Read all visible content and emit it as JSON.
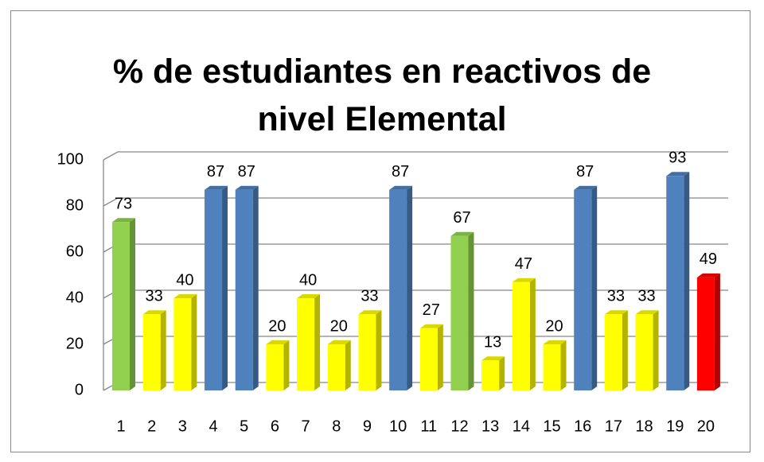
{
  "chart_data": {
    "type": "bar3d",
    "title": "% de estudiantes en reactivos de nivel Elemental",
    "categories": [
      "1",
      "2",
      "3",
      "4",
      "5",
      "6",
      "7",
      "8",
      "9",
      "10",
      "11",
      "12",
      "13",
      "14",
      "15",
      "16",
      "17",
      "18",
      "19",
      "20"
    ],
    "values": [
      73,
      33,
      40,
      87,
      87,
      20,
      40,
      20,
      33,
      87,
      27,
      67,
      13,
      47,
      20,
      87,
      33,
      33,
      93,
      49
    ],
    "colors": [
      "#92d050",
      "#ffff00",
      "#ffff00",
      "#4f81bd",
      "#4f81bd",
      "#ffff00",
      "#ffff00",
      "#ffff00",
      "#ffff00",
      "#4f81bd",
      "#ffff00",
      "#92d050",
      "#ffff00",
      "#ffff00",
      "#ffff00",
      "#4f81bd",
      "#ffff00",
      "#ffff00",
      "#4f81bd",
      "#ff0000"
    ],
    "ylim": [
      0,
      100
    ],
    "yticks": [
      0,
      20,
      40,
      60,
      80,
      100
    ],
    "grid": true
  }
}
